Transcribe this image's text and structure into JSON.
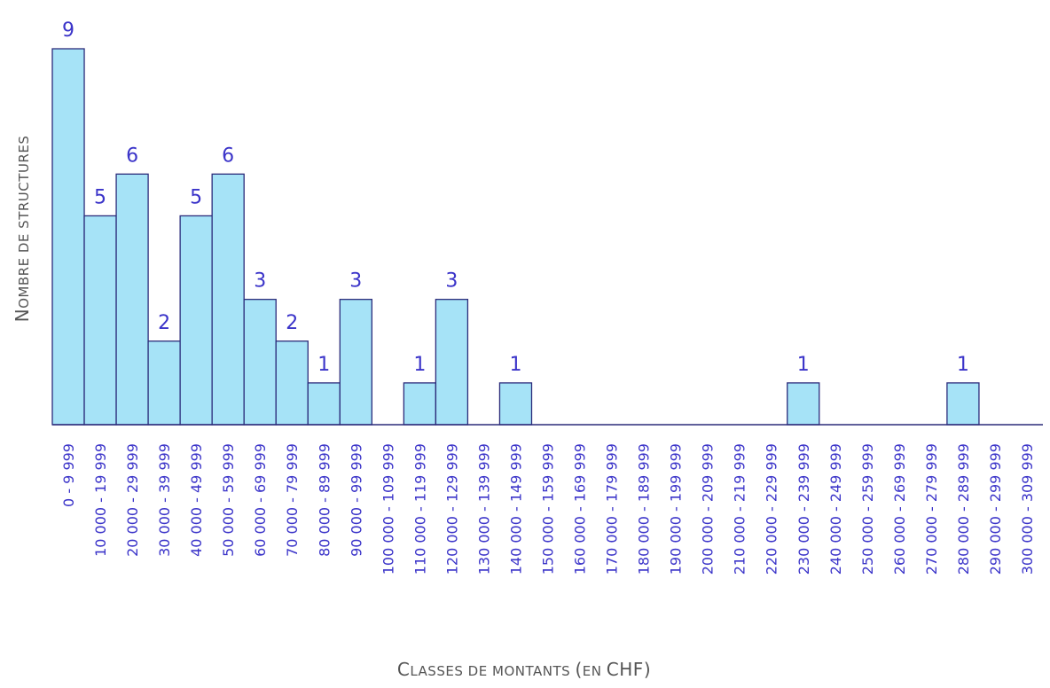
{
  "chart_data": {
    "type": "bar",
    "title": "",
    "xlabel": "Classes de montants (en CHF)",
    "ylabel": "Nombre de structures",
    "ylim": [
      0,
      9
    ],
    "grid": false,
    "show_y_axis": false,
    "categories": [
      "0 - 9 999",
      "10 000 - 19 999",
      "20 000 - 29 999",
      "30 000 - 39 999",
      "40 000 - 49 999",
      "50 000 - 59 999",
      "60 000 - 69 999",
      "70 000 - 79 999",
      "80 000 - 89 999",
      "90 000 - 99 999",
      "100 000 - 109 999",
      "110 000 - 119 999",
      "120 000 - 129 999",
      "130 000 - 139 999",
      "140 000 - 149 999",
      "150 000 - 159 999",
      "160 000 - 169 999",
      "170 000 - 179 999",
      "180 000 - 189 999",
      "190 000 - 199 999",
      "200 000 - 209 999",
      "210 000 - 219 999",
      "220 000 - 229 999",
      "230 000 - 239 999",
      "240 000 - 249 999",
      "250 000 - 259 999",
      "260 000 - 269 999",
      "270 000 - 279 999",
      "280 000 - 289 999",
      "290 000 - 299 999",
      "300 000 - 309 999"
    ],
    "values": [
      9,
      5,
      6,
      2,
      5,
      6,
      3,
      2,
      1,
      3,
      0,
      1,
      3,
      0,
      1,
      0,
      0,
      0,
      0,
      0,
      0,
      0,
      0,
      1,
      0,
      0,
      0,
      0,
      1,
      0,
      0
    ],
    "colors": {
      "bar_fill": "#a6e3f7",
      "bar_stroke": "#2b2b7a",
      "labels": "#3b34c9",
      "axis_title": "#555555"
    }
  }
}
